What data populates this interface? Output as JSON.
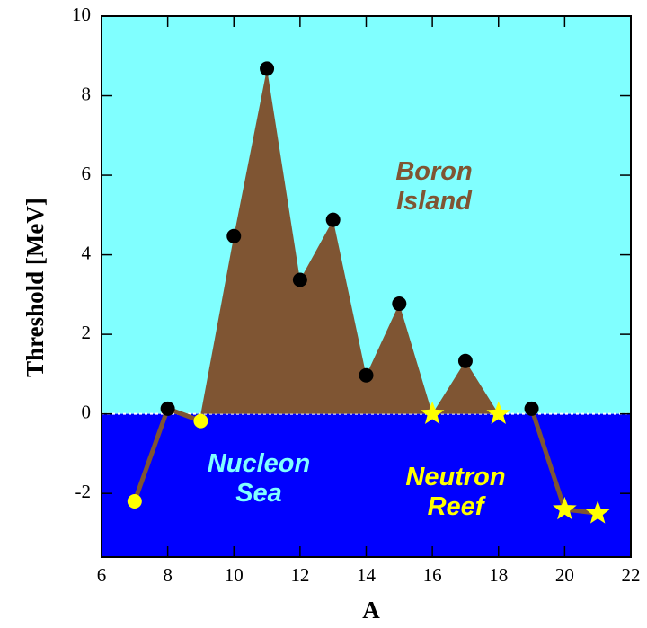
{
  "chart_data": {
    "type": "scatter",
    "xlabel": "A",
    "ylabel": "Threshold  [MeV]",
    "xlim": [
      6,
      22
    ],
    "ylim": [
      -3.6,
      10
    ],
    "xticks": [
      6,
      8,
      10,
      12,
      14,
      16,
      18,
      20,
      22
    ],
    "yticks": [
      -2,
      0,
      2,
      4,
      6,
      8,
      10
    ],
    "sky_color": "#80ffff",
    "sea_color": "#0000ff",
    "island_color": "#7f5533",
    "series": [
      {
        "marker": "circle",
        "color": "#000000",
        "x": [
          8,
          10,
          11,
          12,
          13,
          14,
          15,
          17,
          19
        ],
        "values": [
          0.13,
          4.47,
          8.68,
          3.37,
          4.88,
          0.97,
          2.77,
          1.33,
          0.13
        ]
      },
      {
        "marker": "circle",
        "color": "#ffff00",
        "x": [
          7,
          9
        ],
        "values": [
          -2.2,
          -0.18
        ]
      },
      {
        "marker": "star",
        "color": "#ffff00",
        "x": [
          16,
          18,
          20,
          21
        ],
        "values": [
          0,
          0,
          -2.4,
          -2.5
        ]
      }
    ],
    "annotations": [
      {
        "lines": [
          "Boron",
          "Island"
        ],
        "color": "#7f5533"
      },
      {
        "lines": [
          "Nucleon",
          "Sea"
        ],
        "color": "#80ffff"
      },
      {
        "lines": [
          "Neutron",
          "Reef"
        ],
        "color": "#ffff00"
      }
    ]
  }
}
